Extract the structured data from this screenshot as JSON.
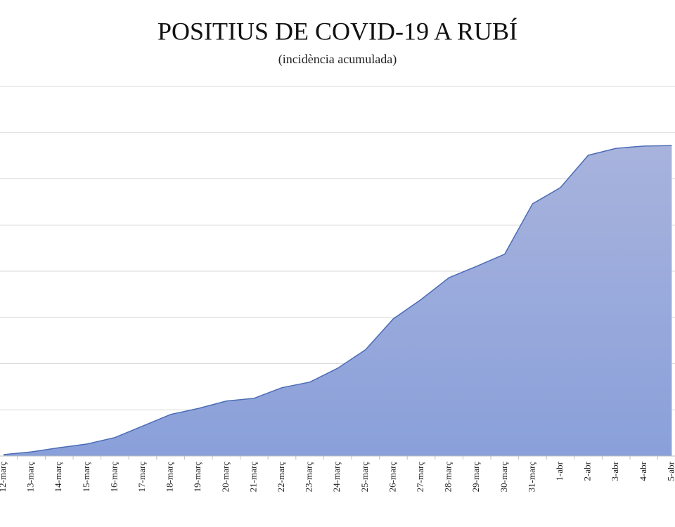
{
  "chart_data": {
    "type": "area",
    "title": "POSITIUS DE COVID-19 A RUBÍ",
    "subtitle": "(incidència acumulada)",
    "categories": [
      "12-març",
      "13-març",
      "14-març",
      "15-març",
      "16-març",
      "17-març",
      "18-març",
      "19-març",
      "20-març",
      "21-març",
      "22-març",
      "23-març",
      "24-març",
      "25-març",
      "26-març",
      "27-març",
      "28-març",
      "29-març",
      "30-març",
      "31-març",
      "1-abr",
      "2-abr",
      "3-abr",
      "4-abr",
      "5-abr"
    ],
    "values": [
      0.03,
      0.09,
      0.18,
      0.26,
      0.4,
      0.65,
      0.9,
      1.03,
      1.19,
      1.25,
      1.48,
      1.6,
      1.9,
      2.3,
      2.97,
      3.39,
      3.86,
      4.11,
      4.37,
      5.46,
      5.81,
      6.51,
      6.66,
      6.71,
      6.72
    ],
    "color": "#4a6cb5",
    "ylim": [
      0,
      8
    ],
    "ygrid": [
      0,
      1,
      2,
      3,
      4,
      5,
      6,
      7,
      8
    ],
    "grid": true
  }
}
